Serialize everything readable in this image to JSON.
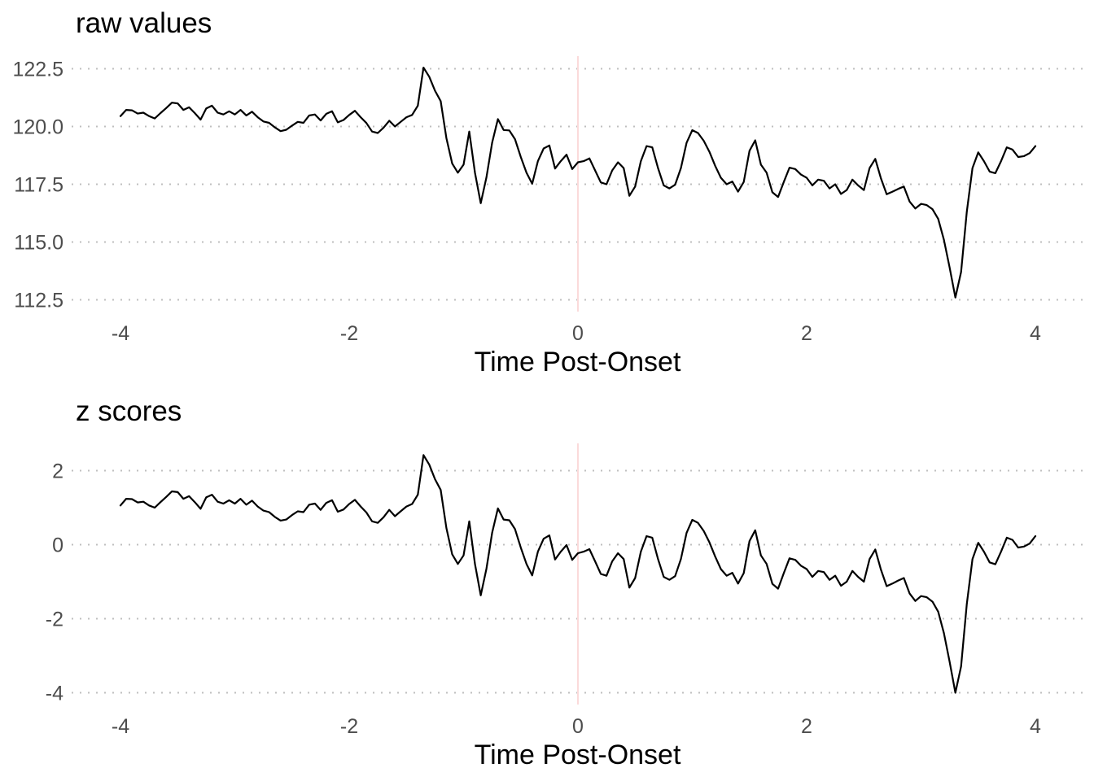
{
  "figure": {
    "background": "#ffffff",
    "colors": {
      "series_line": "#000000",
      "gridline": "#bfbfbf",
      "zero_marker_line": "#fbdada",
      "tick_text": "#4d4d4d",
      "title_text": "#000000"
    }
  },
  "chart_data": [
    {
      "type": "line",
      "title": "raw values",
      "xlabel": "Time Post-Onset",
      "ylabel": "",
      "legend": "none",
      "grid": "horizontal-dotted",
      "vline_x": 0,
      "xlim": [
        -4.42,
        4.42
      ],
      "ylim": [
        111.7,
        123.05
      ],
      "x_ticks": [
        -4,
        -2,
        0,
        2,
        4
      ],
      "x_tick_labels": [
        "-4",
        "-2",
        "0",
        "2",
        "4"
      ],
      "y_ticks": [
        112.5,
        115.0,
        117.5,
        120.0,
        122.5
      ],
      "y_tick_labels": [
        "112.5",
        "115.0",
        "117.5",
        "120.0",
        "122.5"
      ],
      "x_start": -4,
      "x_step": 0.05,
      "values": [
        120.45,
        120.72,
        120.7,
        120.56,
        120.6,
        120.45,
        120.35,
        120.58,
        120.8,
        121.03,
        121.0,
        120.72,
        120.83,
        120.58,
        120.3,
        120.78,
        120.9,
        120.6,
        120.52,
        120.66,
        120.52,
        120.72,
        120.48,
        120.64,
        120.4,
        120.22,
        120.16,
        119.96,
        119.8,
        119.86,
        120.04,
        120.2,
        120.16,
        120.48,
        120.52,
        120.26,
        120.55,
        120.66,
        120.18,
        120.28,
        120.5,
        120.68,
        120.4,
        120.15,
        119.78,
        119.72,
        119.95,
        120.25,
        120.0,
        120.2,
        120.4,
        120.5,
        120.9,
        122.55,
        122.15,
        121.55,
        121.1,
        119.5,
        118.4,
        118.0,
        118.35,
        119.78,
        118.0,
        116.68,
        117.8,
        119.3,
        120.32,
        119.85,
        119.83,
        119.45,
        118.68,
        118.0,
        117.52,
        118.5,
        119.05,
        119.18,
        118.18,
        118.5,
        118.78,
        118.16,
        118.45,
        118.5,
        118.62,
        118.1,
        117.58,
        117.5,
        118.1,
        118.45,
        118.2,
        117.0,
        117.4,
        118.5,
        119.15,
        119.1,
        118.2,
        117.45,
        117.32,
        117.48,
        118.2,
        119.3,
        119.84,
        119.72,
        119.38,
        118.9,
        118.3,
        117.78,
        117.5,
        117.62,
        117.18,
        117.6,
        118.95,
        119.4,
        118.35,
        118.0,
        117.15,
        116.95,
        117.6,
        118.22,
        118.16,
        117.92,
        117.78,
        117.45,
        117.7,
        117.65,
        117.32,
        117.5,
        117.08,
        117.25,
        117.7,
        117.45,
        117.25,
        118.2,
        118.6,
        117.75,
        117.07,
        117.18,
        117.3,
        117.4,
        116.75,
        116.45,
        116.65,
        116.6,
        116.42,
        116.0,
        115.1,
        113.9,
        112.6,
        113.7,
        116.3,
        118.2,
        118.88,
        118.5,
        118.05,
        117.98,
        118.5,
        119.1,
        119.0,
        118.68,
        118.72,
        118.85,
        119.15
      ]
    },
    {
      "type": "line",
      "title": "z scores",
      "xlabel": "Time Post-Onset",
      "ylabel": "",
      "legend": "none",
      "grid": "horizontal-dotted",
      "vline_x": 0,
      "xlim": [
        -4.42,
        4.42
      ],
      "ylim": [
        -4.32,
        2.74
      ],
      "x_ticks": [
        -4,
        -2,
        0,
        2,
        4
      ],
      "x_tick_labels": [
        "-4",
        "-2",
        "0",
        "2",
        "4"
      ],
      "y_ticks": [
        -4,
        -2,
        0,
        2
      ],
      "y_tick_labels": [
        "-4",
        "-2",
        "0",
        "2"
      ],
      "x_start": -4,
      "x_step": 0.05,
      "values": [
        1.06,
        1.24,
        1.23,
        1.14,
        1.16,
        1.06,
        1.0,
        1.15,
        1.29,
        1.44,
        1.42,
        1.24,
        1.31,
        1.15,
        0.97,
        1.28,
        1.35,
        1.16,
        1.11,
        1.2,
        1.11,
        1.24,
        1.08,
        1.19,
        1.03,
        0.92,
        0.88,
        0.75,
        0.65,
        0.68,
        0.8,
        0.9,
        0.88,
        1.08,
        1.11,
        0.94,
        1.13,
        1.2,
        0.89,
        0.95,
        1.1,
        1.21,
        1.03,
        0.87,
        0.63,
        0.59,
        0.74,
        0.94,
        0.77,
        0.9,
        1.03,
        1.1,
        1.35,
        2.42,
        2.16,
        1.77,
        1.48,
        0.45,
        -0.26,
        -0.52,
        -0.29,
        0.63,
        -0.52,
        -1.37,
        -0.65,
        0.32,
        0.98,
        0.68,
        0.66,
        0.42,
        -0.08,
        -0.52,
        -0.83,
        -0.19,
        0.16,
        0.25,
        -0.4,
        -0.19,
        -0.01,
        -0.41,
        -0.23,
        -0.19,
        -0.12,
        -0.45,
        -0.79,
        -0.84,
        -0.45,
        -0.23,
        -0.39,
        -1.16,
        -0.9,
        -0.19,
        0.23,
        0.19,
        -0.39,
        -0.87,
        -0.95,
        -0.85,
        -0.39,
        0.32,
        0.67,
        0.59,
        0.37,
        0.06,
        -0.32,
        -0.66,
        -0.84,
        -0.76,
        -1.05,
        -0.77,
        0.1,
        0.39,
        -0.29,
        -0.52,
        -1.06,
        -1.19,
        -0.77,
        -0.37,
        -0.41,
        -0.57,
        -0.66,
        -0.87,
        -0.71,
        -0.74,
        -0.95,
        -0.84,
        -1.11,
        -1.0,
        -0.71,
        -0.87,
        -1.0,
        -0.39,
        -0.13,
        -0.68,
        -1.12,
        -1.05,
        -0.97,
        -0.9,
        -1.32,
        -1.52,
        -1.39,
        -1.42,
        -1.54,
        -1.81,
        -2.39,
        -3.16,
        -4.0,
        -3.29,
        -1.61,
        -0.39,
        0.05,
        -0.19,
        -0.48,
        -0.53,
        -0.19,
        0.19,
        0.13,
        -0.08,
        -0.05,
        0.03,
        0.23
      ]
    }
  ]
}
